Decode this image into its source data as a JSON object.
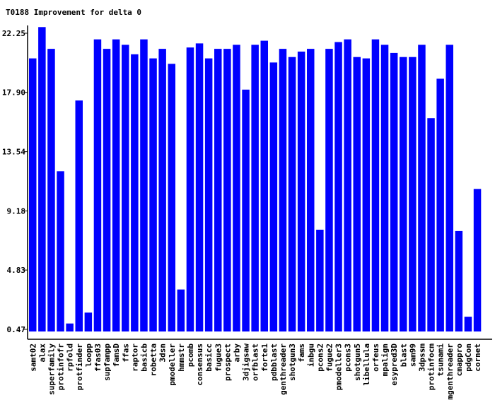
{
  "chart_data": {
    "type": "bar",
    "title": "T0188 Improvement for delta 0",
    "xlabel": "",
    "ylabel": "",
    "ylim": [
      0.47,
      22.25
    ],
    "yticks": [
      "22.25",
      "17.90",
      "13.54",
      "9.18",
      "4.83",
      "0.47"
    ],
    "grid": false,
    "bar_color": "#0000ff",
    "categories": [
      "samt02",
      "alax",
      "superfamily",
      "protinfofr",
      "rpfold",
      "protfinder",
      "loopp",
      "ffas03",
      "supfampp",
      "famsD",
      "ffas",
      "raptor",
      "basicb",
      "robetta",
      "3dsn",
      "pmodeller",
      "hmmstr",
      "pcomb",
      "consensus",
      "basicc",
      "fugue3",
      "prospect",
      "arby",
      "3djigsaw",
      "orfblast",
      "forte1",
      "pdbblast",
      "genthreader",
      "shotgun3",
      "fams",
      "inbgu",
      "pcons2",
      "fugue2",
      "pmodeller3",
      "pcons3",
      "shotgun5",
      "libellula",
      "orfeus",
      "mpalign",
      "esypred3D",
      "blast",
      "sam99",
      "3dpssm",
      "protinfocm",
      "tsunami",
      "mgenthreader",
      "cmappro",
      "pdgCon",
      "cornet"
    ],
    "values": [
      20.4,
      22.7,
      21.1,
      12.1,
      0.9,
      17.3,
      1.7,
      21.8,
      21.1,
      21.8,
      21.4,
      20.7,
      21.8,
      20.4,
      21.1,
      20.0,
      3.4,
      21.2,
      21.5,
      20.4,
      21.1,
      21.1,
      21.4,
      18.1,
      21.4,
      21.7,
      20.1,
      21.1,
      20.5,
      20.9,
      21.1,
      7.8,
      21.1,
      21.6,
      21.8,
      20.5,
      20.4,
      21.8,
      21.4,
      20.8,
      20.5,
      20.5,
      21.4,
      16.0,
      18.9,
      21.4,
      7.7,
      1.4,
      10.8
    ]
  }
}
